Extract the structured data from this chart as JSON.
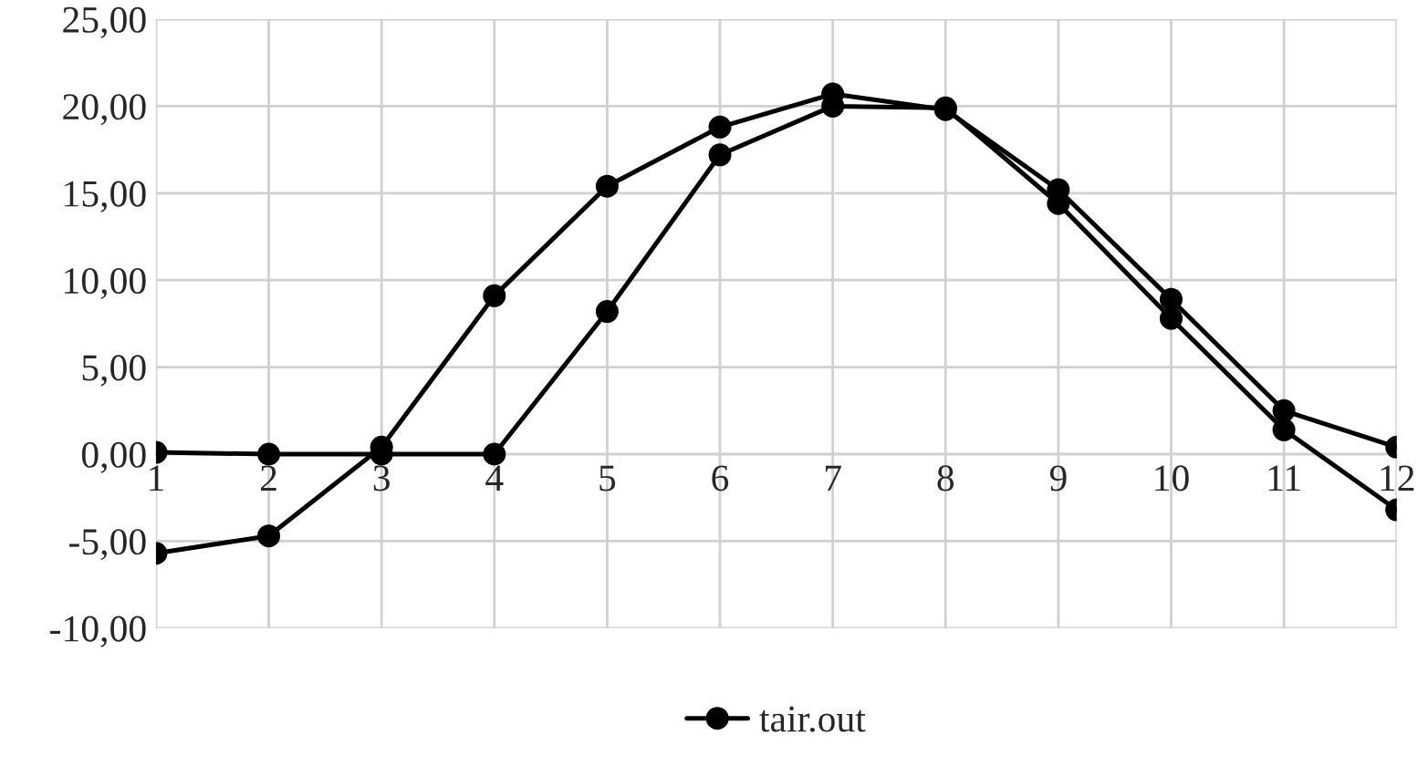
{
  "chart_data": {
    "type": "line",
    "categories": [
      "1",
      "2",
      "3",
      "4",
      "5",
      "6",
      "7",
      "8",
      "9",
      "10",
      "11",
      "12"
    ],
    "series": [
      {
        "name": "tair.out",
        "color": "#000000",
        "values": [
          0.1,
          0,
          0,
          0,
          8.2,
          17.2,
          20.0,
          19.9,
          14.4,
          7.8,
          1.4,
          -3.2
        ]
      },
      {
        "color": "#000000",
        "values": [
          -5.7,
          -4.7,
          0.4,
          9.1,
          15.4,
          18.8,
          20.7,
          19.8,
          15.2,
          8.9,
          2.5,
          0.4
        ]
      }
    ],
    "ylim": [
      -10,
      25
    ],
    "yticks": [
      {
        "value": -10,
        "label": "-10,00"
      },
      {
        "value": -5,
        "label": "-5,00"
      },
      {
        "value": 0,
        "label": "0,00"
      },
      {
        "value": 5,
        "label": "5,00"
      },
      {
        "value": 10,
        "label": "10,00"
      },
      {
        "value": 15,
        "label": "15,00"
      },
      {
        "value": 20,
        "label": "20,00"
      },
      {
        "value": 25,
        "label": "25,00"
      }
    ],
    "grid": true,
    "legend": "bottom",
    "marker": "circle",
    "line_style": "solid"
  }
}
